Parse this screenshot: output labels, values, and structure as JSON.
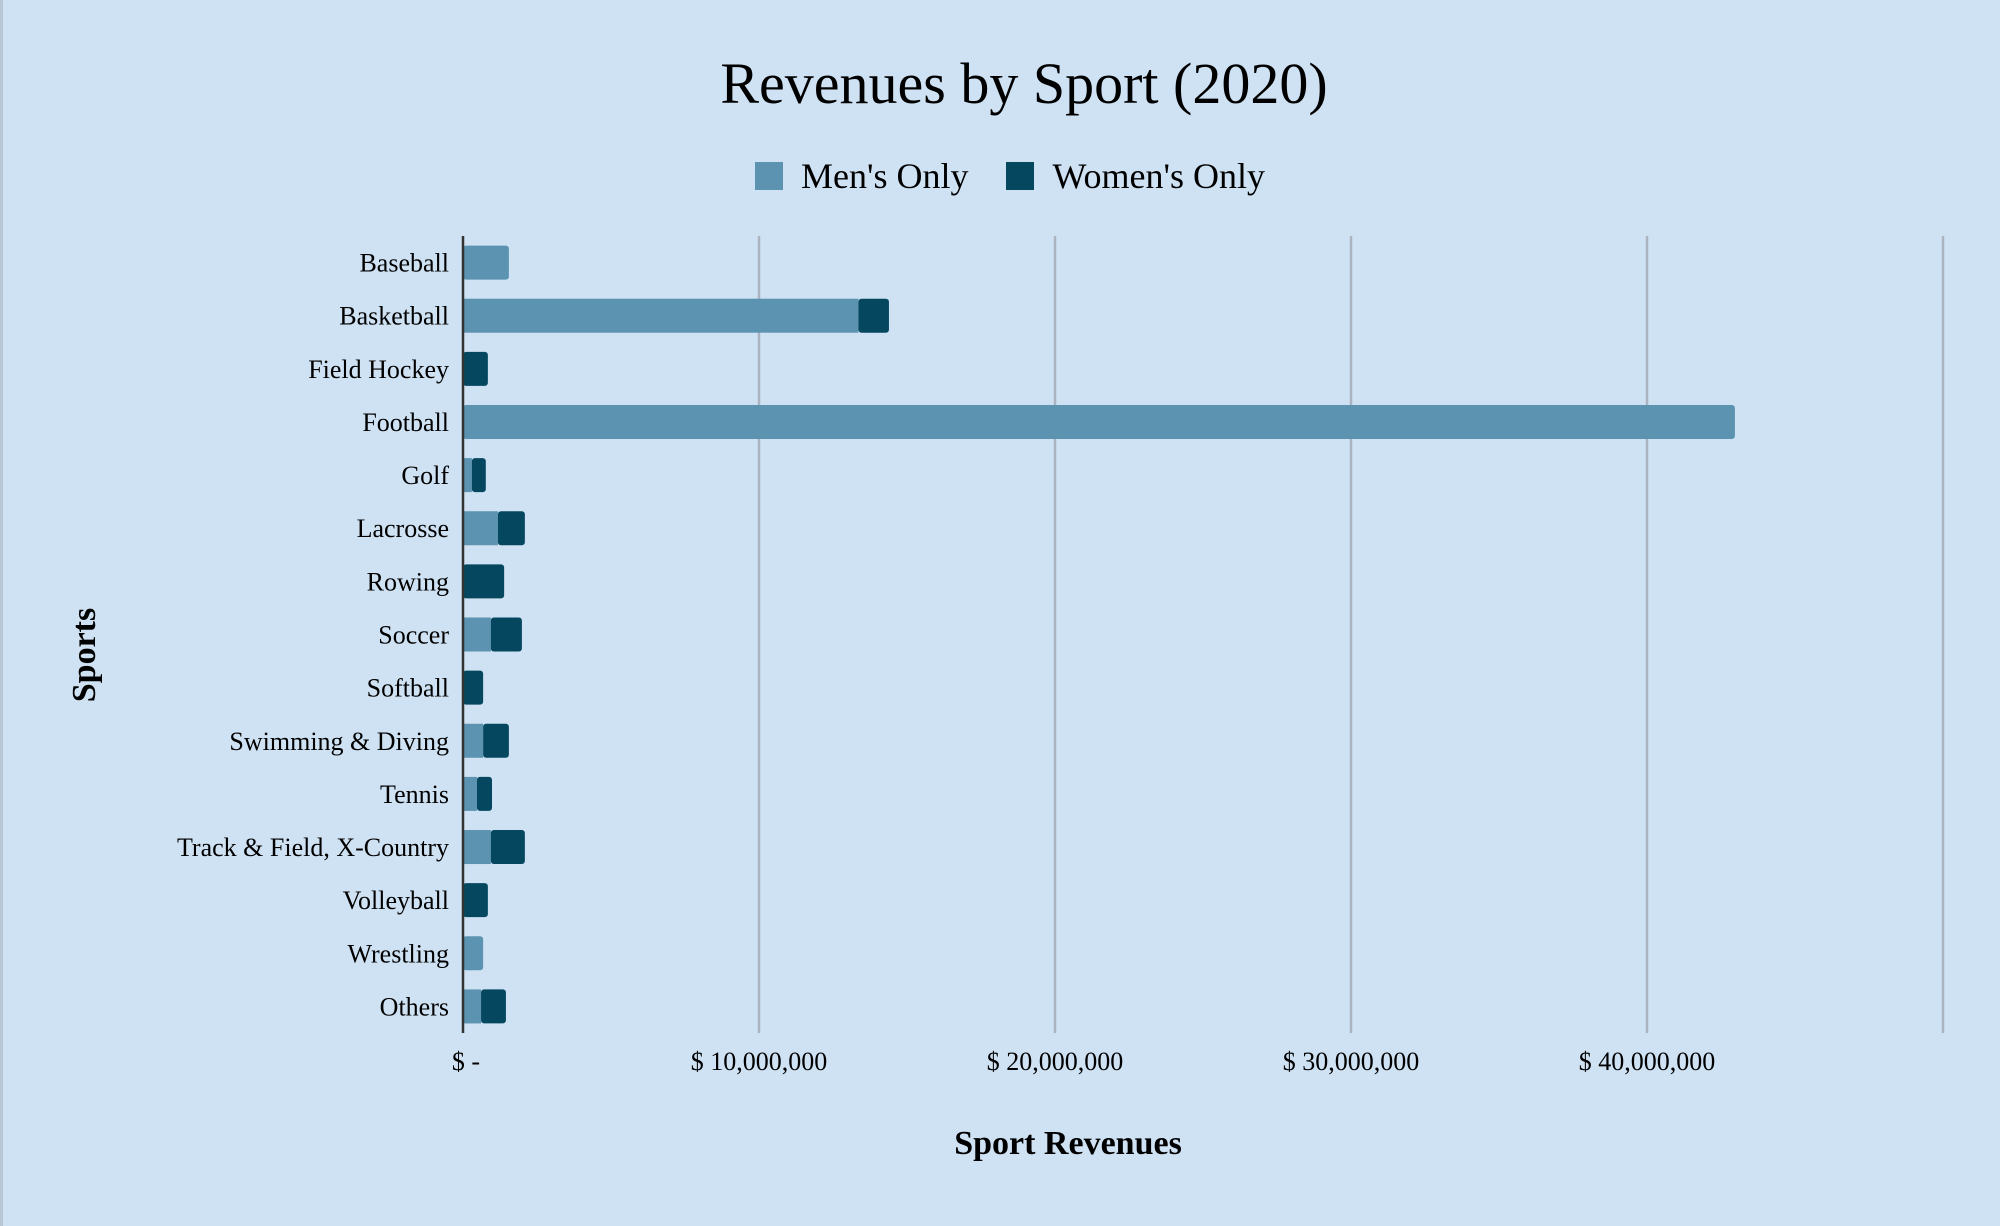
{
  "chart_data": {
    "type": "bar",
    "orientation": "horizontal",
    "stacked": true,
    "title": "Revenues by Sport (2020)",
    "xlabel": "Sport Revenues",
    "ylabel": "Sports",
    "xlim": [
      0,
      50000000
    ],
    "x_ticks": [
      0,
      10000000,
      20000000,
      30000000,
      40000000
    ],
    "x_tick_labels": [
      "$ -",
      "$ 10,000,000",
      "$ 20,000,000",
      "$ 30,000,000",
      "$ 40,000,000"
    ],
    "grid": "vertical",
    "legend_position": "top",
    "categories": [
      "Baseball",
      "Basketball",
      "Field Hockey",
      "Football",
      "Golf",
      "Lacrosse",
      "Rowing",
      "Soccer",
      "Softball",
      "Swimming & Diving",
      "Tennis",
      "Track & Field, X-Country",
      "Volleyball",
      "Wrestling",
      "Others"
    ],
    "series": [
      {
        "name": "Men's Only",
        "color": "#5b93b0",
        "values": [
          1550000,
          13360000,
          0,
          42970000,
          300000,
          1180000,
          0,
          940000,
          0,
          680000,
          470000,
          940000,
          0,
          680000,
          610000
        ]
      },
      {
        "name": "Women's Only",
        "color": "#05475f",
        "values": [
          0,
          1030000,
          840000,
          0,
          470000,
          910000,
          1390000,
          1050000,
          680000,
          870000,
          510000,
          1150000,
          840000,
          0,
          840000
        ]
      }
    ]
  },
  "colors": {
    "background": "#cfe2f3",
    "gridline": "#a9b4c0"
  }
}
